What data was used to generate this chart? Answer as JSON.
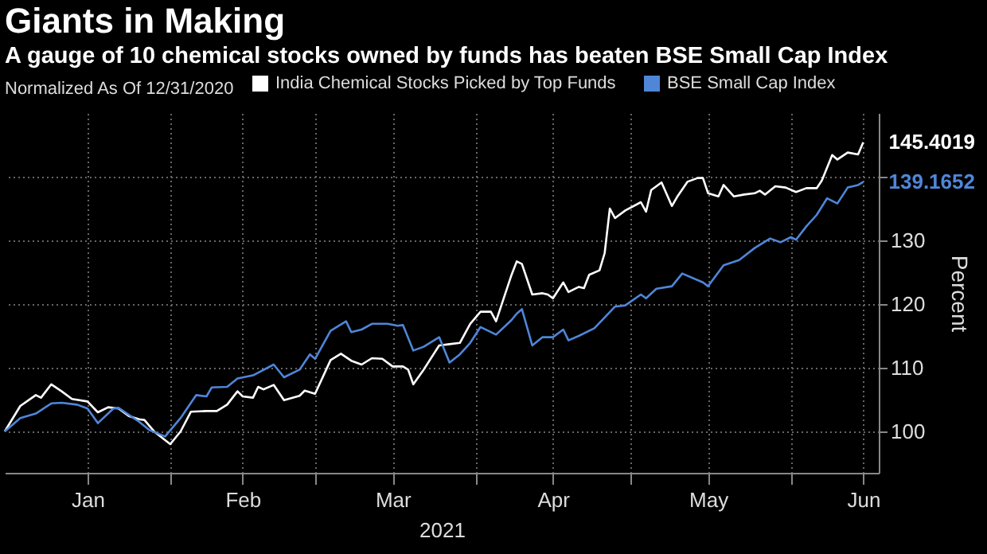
{
  "chart_data": {
    "type": "line",
    "title": "Giants in Making",
    "subtitle": "A gauge of 10 chemical stocks owned by funds has beaten BSE Small Cap Index",
    "legend_title": "Normalized As Of 12/31/2020",
    "xlabel": "2021",
    "ylabel": "Percent",
    "legend": "top",
    "grid": true,
    "xlim": [
      "2020-12-31",
      "2021-06-18"
    ],
    "xticks": [
      {
        "value": "2021-01-16",
        "label": "Jan"
      },
      {
        "value": "2021-02-01",
        "label": null
      },
      {
        "value": "2021-02-15",
        "label": "Feb"
      },
      {
        "value": "2021-03-01",
        "label": null
      },
      {
        "value": "2021-03-16",
        "label": "Mar"
      },
      {
        "value": "2021-04-01",
        "label": null
      },
      {
        "value": "2021-04-16",
        "label": "Apr"
      },
      {
        "value": "2021-05-01",
        "label": null
      },
      {
        "value": "2021-05-16",
        "label": "May"
      },
      {
        "value": "2021-06-01",
        "label": null
      },
      {
        "value": "2021-06-15",
        "label": "Jun"
      }
    ],
    "ylim": [
      93.5,
      150
    ],
    "yticks": [
      100,
      110,
      120,
      130,
      {
        "value": 140,
        "label": null
      }
    ],
    "series": [
      {
        "name": "India Chemical Stocks Picked by Top Funds",
        "color": "#ffffff",
        "x": [
          "2020-12-31",
          "2021-01-03",
          "2021-01-06",
          "2021-01-07",
          "2021-01-09",
          "2021-01-11",
          "2021-01-13",
          "2021-01-16",
          "2021-01-18",
          "2021-01-20",
          "2021-01-22",
          "2021-01-24",
          "2021-01-26",
          "2021-01-27",
          "2021-01-29",
          "2021-02-01",
          "2021-02-03",
          "2021-02-05",
          "2021-02-08",
          "2021-02-10",
          "2021-02-12",
          "2021-02-14",
          "2021-02-15",
          "2021-02-17",
          "2021-02-18",
          "2021-02-19",
          "2021-02-21",
          "2021-02-23",
          "2021-02-26",
          "2021-02-27",
          "2021-03-01",
          "2021-03-04",
          "2021-03-06",
          "2021-03-08",
          "2021-03-10",
          "2021-03-12",
          "2021-03-14",
          "2021-03-16",
          "2021-03-18",
          "2021-03-19",
          "2021-03-20",
          "2021-03-22",
          "2021-03-25",
          "2021-03-27",
          "2021-03-29",
          "2021-03-31",
          "2021-04-02",
          "2021-04-04",
          "2021-04-05",
          "2021-04-08",
          "2021-04-09",
          "2021-04-10",
          "2021-04-12",
          "2021-04-14",
          "2021-04-15",
          "2021-04-16",
          "2021-04-18",
          "2021-04-19",
          "2021-04-21",
          "2021-04-22",
          "2021-04-23",
          "2021-04-25",
          "2021-04-26",
          "2021-04-27",
          "2021-04-28",
          "2021-04-30",
          "2021-05-03",
          "2021-05-04",
          "2021-05-05",
          "2021-05-07",
          "2021-05-09",
          "2021-05-10",
          "2021-05-12",
          "2021-05-14",
          "2021-05-15",
          "2021-05-16",
          "2021-05-18",
          "2021-05-19",
          "2021-05-21",
          "2021-05-23",
          "2021-05-25",
          "2021-05-26",
          "2021-05-27",
          "2021-05-29",
          "2021-05-31",
          "2021-06-02",
          "2021-06-04",
          "2021-06-06",
          "2021-06-07",
          "2021-06-09",
          "2021-06-10",
          "2021-06-12",
          "2021-06-14",
          "2021-06-15"
        ],
        "values": [
          100.0,
          104.0,
          105.7,
          105.3,
          107.4,
          106.3,
          105.1,
          104.7,
          103.0,
          103.8,
          103.6,
          102.4,
          101.9,
          101.8,
          99.9,
          98.0,
          100.0,
          103.1,
          103.2,
          103.2,
          104.2,
          106.3,
          105.5,
          105.3,
          107.0,
          106.6,
          107.3,
          104.9,
          105.6,
          106.4,
          105.9,
          111.2,
          112.2,
          111.1,
          110.5,
          111.5,
          111.4,
          110.2,
          110.2,
          109.7,
          107.4,
          109.7,
          113.5,
          113.7,
          113.9,
          116.9,
          118.8,
          118.8,
          117.3,
          124.6,
          126.7,
          126.3,
          121.5,
          121.7,
          121.5,
          120.9,
          123.4,
          121.9,
          122.7,
          122.5,
          124.6,
          125.3,
          128.0,
          135.0,
          133.5,
          134.7,
          136.0,
          134.5,
          137.9,
          139.1,
          135.4,
          136.8,
          139.2,
          139.8,
          139.8,
          137.4,
          136.9,
          138.7,
          136.9,
          137.2,
          137.4,
          137.8,
          137.2,
          138.5,
          138.3,
          137.6,
          138.2,
          138.2,
          139.4,
          143.4,
          142.7,
          143.8,
          143.5,
          145.4019
        ],
        "value_labels": [
          null,
          null,
          null,
          null,
          null,
          null,
          null,
          null,
          null,
          null,
          null,
          null,
          null,
          null,
          null,
          null,
          null,
          null,
          null,
          null,
          null,
          null,
          null,
          null,
          null,
          null,
          null,
          null,
          null,
          null,
          null,
          null,
          null,
          null,
          null,
          null,
          null,
          null,
          null,
          null,
          null,
          null,
          null,
          null,
          null,
          null,
          null,
          null,
          null,
          null,
          null,
          null,
          null,
          null,
          null,
          null,
          null,
          null,
          null,
          null,
          null,
          null,
          null,
          null,
          null,
          null,
          null,
          null,
          null,
          null,
          null,
          null,
          null,
          null,
          null,
          null,
          null,
          null,
          null,
          null,
          null,
          null,
          null,
          null,
          null,
          null,
          null,
          null,
          null,
          null,
          null,
          null,
          null,
          "145.4019"
        ]
      },
      {
        "name": "BSE Small Cap Index",
        "color": "#4f86d8",
        "x": [
          "2020-12-31",
          "2021-01-03",
          "2021-01-06",
          "2021-01-09",
          "2021-01-11",
          "2021-01-14",
          "2021-01-16",
          "2021-01-18",
          "2021-01-21",
          "2021-01-22",
          "2021-01-26",
          "2021-01-28",
          "2021-01-31",
          "2021-02-03",
          "2021-02-06",
          "2021-02-08",
          "2021-02-09",
          "2021-02-12",
          "2021-02-14",
          "2021-02-17",
          "2021-02-21",
          "2021-02-23",
          "2021-02-26",
          "2021-02-28",
          "2021-03-01",
          "2021-03-04",
          "2021-03-07",
          "2021-03-08",
          "2021-03-10",
          "2021-03-12",
          "2021-03-15",
          "2021-03-17",
          "2021-03-18",
          "2021-03-20",
          "2021-03-22",
          "2021-03-25",
          "2021-03-27",
          "2021-03-29",
          "2021-03-31",
          "2021-04-02",
          "2021-04-05",
          "2021-04-08",
          "2021-04-09",
          "2021-04-10",
          "2021-04-12",
          "2021-04-14",
          "2021-04-16",
          "2021-04-18",
          "2021-04-19",
          "2021-04-21",
          "2021-04-24",
          "2021-04-26",
          "2021-04-28",
          "2021-04-30",
          "2021-05-03",
          "2021-05-04",
          "2021-05-06",
          "2021-05-09",
          "2021-05-11",
          "2021-05-15",
          "2021-05-16",
          "2021-05-19",
          "2021-05-22",
          "2021-05-25",
          "2021-05-28",
          "2021-05-30",
          "2021-06-01",
          "2021-06-02",
          "2021-06-04",
          "2021-06-06",
          "2021-06-08",
          "2021-06-10",
          "2021-06-12",
          "2021-06-14",
          "2021-06-15"
        ],
        "values": [
          100.0,
          102.1,
          102.8,
          104.4,
          104.5,
          104.2,
          103.6,
          101.3,
          103.6,
          103.7,
          101.5,
          100.2,
          99.2,
          102.1,
          105.7,
          105.5,
          106.9,
          107.0,
          108.3,
          108.8,
          110.5,
          108.5,
          109.7,
          112.1,
          111.4,
          115.8,
          117.3,
          115.6,
          116.0,
          116.9,
          116.9,
          116.6,
          116.7,
          112.7,
          113.3,
          114.8,
          110.8,
          112.1,
          113.9,
          116.4,
          115.2,
          117.5,
          118.5,
          119.2,
          113.5,
          114.8,
          114.8,
          116.0,
          114.3,
          115.0,
          116.2,
          117.9,
          119.6,
          119.8,
          121.5,
          120.9,
          122.4,
          122.8,
          124.8,
          123.4,
          122.8,
          126.1,
          126.9,
          128.8,
          130.3,
          129.7,
          130.5,
          130.1,
          132.2,
          134.0,
          136.6,
          135.8,
          138.3,
          138.7,
          139.1652
        ],
        "value_labels": [
          null,
          null,
          null,
          null,
          null,
          null,
          null,
          null,
          null,
          null,
          null,
          null,
          null,
          null,
          null,
          null,
          null,
          null,
          null,
          null,
          null,
          null,
          null,
          null,
          null,
          null,
          null,
          null,
          null,
          null,
          null,
          null,
          null,
          null,
          null,
          null,
          null,
          null,
          null,
          null,
          null,
          null,
          null,
          null,
          null,
          null,
          null,
          null,
          null,
          null,
          null,
          null,
          null,
          null,
          null,
          null,
          null,
          null,
          null,
          null,
          null,
          null,
          null,
          null,
          null,
          null,
          null,
          null,
          null,
          null,
          null,
          null,
          null,
          null,
          "139.1652"
        ]
      }
    ]
  }
}
